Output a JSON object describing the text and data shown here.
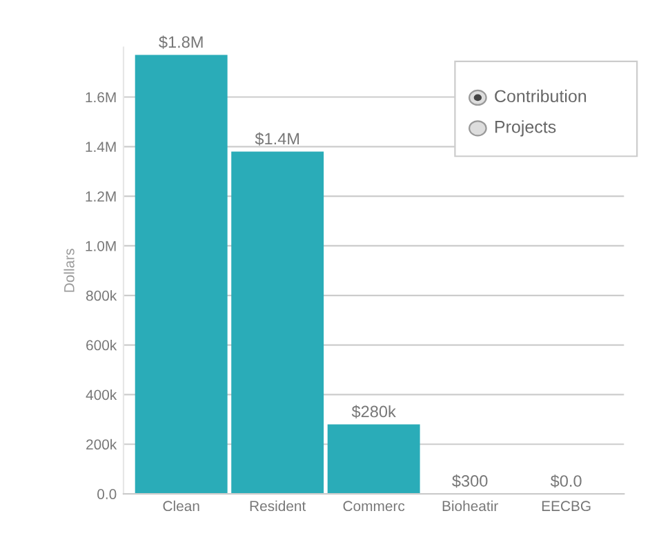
{
  "chart_data": {
    "type": "bar",
    "ylabel": "Dollars",
    "categories": [
      "Clean",
      "Resident",
      "Commerc",
      "Bioheatir",
      "EECBG"
    ],
    "values": [
      1770000,
      1380000,
      280000,
      300,
      0
    ],
    "value_labels": [
      "$1.8M",
      "$1.4M",
      "$280k",
      "$300",
      "$0.0"
    ],
    "color": "#2aacb8",
    "ylim": [
      0,
      1800000
    ],
    "yticks": [
      {
        "value": 0,
        "label": "0.0"
      },
      {
        "value": 200000,
        "label": "200k"
      },
      {
        "value": 400000,
        "label": "400k"
      },
      {
        "value": 600000,
        "label": "600k"
      },
      {
        "value": 800000,
        "label": "800k"
      },
      {
        "value": 1000000,
        "label": "1.0M"
      },
      {
        "value": 1200000,
        "label": "1.2M"
      },
      {
        "value": 1400000,
        "label": "1.4M"
      },
      {
        "value": 1600000,
        "label": "1.6M"
      }
    ],
    "grid": "y",
    "annotations": [
      "Contribution",
      "Projects"
    ]
  }
}
